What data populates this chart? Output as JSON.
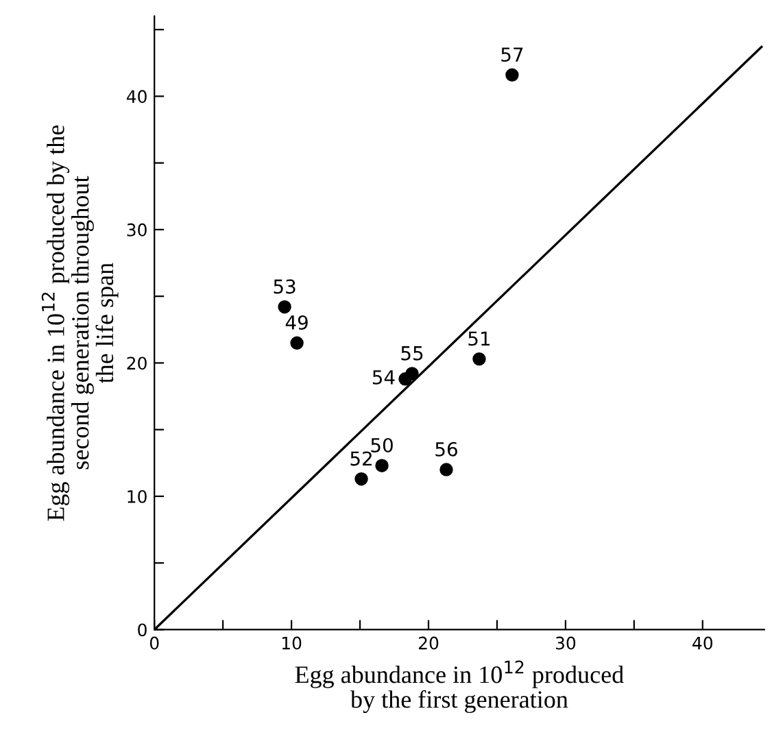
{
  "chart_data": {
    "type": "scatter",
    "xlabel": "Egg abundance in 10$^{12}$ produced\nby the first generation",
    "ylabel": "Egg abundance in 10$^{12}$ produced by the\nsecond generation throughout\nthe life span",
    "x": [
      26.1,
      9.5,
      10.4,
      23.7,
      18.8,
      18.3,
      16.6,
      15.1,
      21.3
    ],
    "series": [
      {
        "color": "#000000",
        "values": [
          41.6,
          24.2,
          21.5,
          20.3,
          19.2,
          18.8,
          12.3,
          11.3,
          12.0
        ],
        "marker": "circle"
      },
      {
        "type": "line",
        "color": "#000000",
        "x": [
          0,
          44.3
        ],
        "values": [
          0,
          43.7
        ],
        "marker": "none",
        "line_style": "solid"
      }
    ],
    "annotations": [
      {
        "text": "57",
        "x": 26.1,
        "y": 41.6
      },
      {
        "text": "53",
        "x": 9.5,
        "y": 24.2
      },
      {
        "text": "49",
        "x": 10.4,
        "y": 21.5
      },
      {
        "text": "51",
        "x": 23.7,
        "y": 20.3
      },
      {
        "text": "55",
        "x": 18.8,
        "y": 19.2
      },
      {
        "text": "54",
        "x": 18.3,
        "y": 18.8
      },
      {
        "text": "50",
        "x": 16.6,
        "y": 12.3
      },
      {
        "text": "52",
        "x": 15.1,
        "y": 11.3
      },
      {
        "text": "56",
        "x": 21.3,
        "y": 12.0
      }
    ],
    "xlim": [
      0,
      44.5
    ],
    "ylim": [
      0,
      46
    ],
    "xticks": [
      0,
      {
        "value": 5,
        "label": null
      },
      10,
      {
        "value": 15,
        "label": null
      },
      20,
      {
        "value": 25,
        "label": null
      },
      30,
      {
        "value": 35,
        "label": null
      },
      40
    ],
    "yticks": [
      0,
      {
        "value": 5,
        "label": null
      },
      10,
      {
        "value": 15,
        "label": null
      },
      20,
      {
        "value": 25,
        "label": null
      },
      30,
      {
        "value": 35,
        "label": null
      },
      40,
      {
        "value": 45,
        "label": null
      }
    ],
    "grid": false,
    "legend": false
  }
}
